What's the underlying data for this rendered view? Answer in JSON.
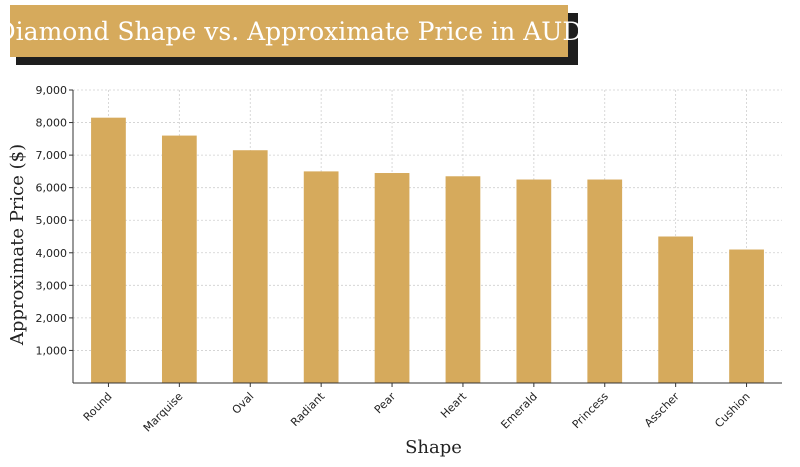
{
  "title": "Diamond Shape vs. Approximate Price in AUD",
  "colors": {
    "bar": "#d6aa5c",
    "title_bg": "#d6aa5c",
    "title_shadow": "#1e1e1e",
    "grid": "#cfcfcf"
  },
  "chart_data": {
    "type": "bar",
    "title": "Diamond Shape vs. Approximate Price in AUD",
    "xlabel": "Shape",
    "ylabel": "Approximate Price ($)",
    "categories": [
      "Round",
      "Marquise",
      "Oval",
      "Radiant",
      "Pear",
      "Heart",
      "Emerald",
      "Princess",
      "Asscher",
      "Cushion"
    ],
    "values": [
      8150,
      7600,
      7150,
      6500,
      6450,
      6350,
      6250,
      6250,
      4500,
      4100
    ],
    "ylim": [
      0,
      9000
    ],
    "yticks": [
      1000,
      2000,
      3000,
      4000,
      5000,
      6000,
      7000,
      8000,
      9000
    ],
    "ytick_labels": [
      "1,000",
      "2,000",
      "3,000",
      "4,000",
      "5,000",
      "6,000",
      "7,000",
      "8,000",
      "9,000"
    ],
    "grid": true,
    "legend": "none"
  }
}
